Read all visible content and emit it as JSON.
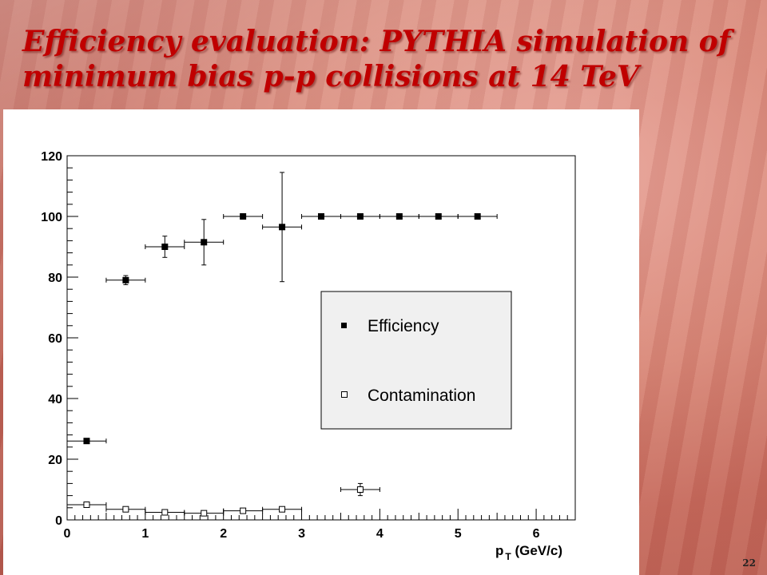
{
  "slide": {
    "title_line1": "Efficiency evaluation: PYTHIA simulation of",
    "title_line2": "minimum bias p-p collisions at 14 TeV",
    "page_number": "22"
  },
  "colors": {
    "title": "#c00000",
    "legend_background": "#f0f0f0",
    "marker": "#000000"
  },
  "chart_data": {
    "type": "scatter",
    "title": "",
    "xlabel_main": "p",
    "xlabel_sub": "T",
    "xlabel_unit": " (GeV/c)",
    "ylabel": "",
    "xlim": [
      0,
      6.5
    ],
    "ylim": [
      0,
      120
    ],
    "x_ticks": [
      0,
      1,
      2,
      3,
      4,
      5,
      6
    ],
    "y_ticks": [
      0,
      20,
      40,
      60,
      80,
      100,
      120
    ],
    "grid": false,
    "legend_position": "center-right",
    "series": [
      {
        "name": "Efficiency",
        "marker": "filled-square",
        "points": [
          {
            "x": 0.25,
            "y": 26,
            "xerr": 0.25,
            "yerr": 0
          },
          {
            "x": 0.75,
            "y": 79,
            "xerr": 0.25,
            "yerr": 1.5
          },
          {
            "x": 1.25,
            "y": 90,
            "xerr": 0.25,
            "yerr": 3.5
          },
          {
            "x": 1.75,
            "y": 91.5,
            "xerr": 0.25,
            "yerr": 7.5
          },
          {
            "x": 2.25,
            "y": 100,
            "xerr": 0.25,
            "yerr": 0
          },
          {
            "x": 2.75,
            "y": 96.5,
            "xerr": 0.25,
            "yerr": 18
          },
          {
            "x": 3.25,
            "y": 100,
            "xerr": 0.25,
            "yerr": 0
          },
          {
            "x": 3.75,
            "y": 100,
            "xerr": 0.25,
            "yerr": 0
          },
          {
            "x": 4.25,
            "y": 100,
            "xerr": 0.25,
            "yerr": 0
          },
          {
            "x": 4.75,
            "y": 100,
            "xerr": 0.25,
            "yerr": 0
          },
          {
            "x": 5.25,
            "y": 100,
            "xerr": 0.25,
            "yerr": 0
          }
        ]
      },
      {
        "name": "Contamination",
        "marker": "open-square",
        "points": [
          {
            "x": 0.25,
            "y": 5,
            "xerr": 0.25,
            "yerr": 0.5
          },
          {
            "x": 0.75,
            "y": 3.5,
            "xerr": 0.25,
            "yerr": 0.5
          },
          {
            "x": 1.25,
            "y": 2.5,
            "xerr": 0.25,
            "yerr": 0.5
          },
          {
            "x": 1.75,
            "y": 2.2,
            "xerr": 0.25,
            "yerr": 0.5
          },
          {
            "x": 2.25,
            "y": 3,
            "xerr": 0.25,
            "yerr": 0.5
          },
          {
            "x": 2.75,
            "y": 3.5,
            "xerr": 0.25,
            "yerr": 0.5
          },
          {
            "x": 3.75,
            "y": 10,
            "xerr": 0.25,
            "yerr": 2
          }
        ]
      }
    ]
  }
}
